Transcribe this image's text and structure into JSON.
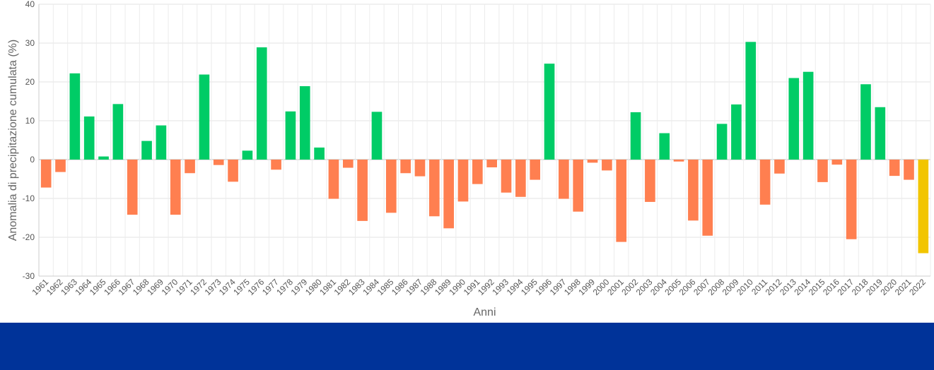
{
  "chart_data": {
    "type": "bar",
    "xlabel": "Anni",
    "ylabel": "Anomalia di precipitazione cumulata (%)",
    "ylim": [
      -30,
      40
    ],
    "yticks": [
      -30,
      -20,
      -10,
      0,
      10,
      20,
      30,
      40
    ],
    "grid": true,
    "legend": "none",
    "colors": {
      "positive": "#00cc66",
      "negative": "#ff7f50",
      "current": "#f2c500"
    },
    "highlighted_category": "2022",
    "categories": [
      "1961",
      "1962",
      "1963",
      "1964",
      "1965",
      "1966",
      "1967",
      "1968",
      "1969",
      "1970",
      "1971",
      "1972",
      "1973",
      "1974",
      "1975",
      "1976",
      "1977",
      "1978",
      "1979",
      "1980",
      "1981",
      "1982",
      "1983",
      "1984",
      "1985",
      "1986",
      "1987",
      "1988",
      "1989",
      "1990",
      "1991",
      "1992",
      "1993",
      "1994",
      "1995",
      "1996",
      "1997",
      "1998",
      "1999",
      "2000",
      "2001",
      "2002",
      "2003",
      "2004",
      "2005",
      "2006",
      "2007",
      "2008",
      "2009",
      "2010",
      "2011",
      "2012",
      "2013",
      "2014",
      "2015",
      "2016",
      "2017",
      "2018",
      "2019",
      "2020",
      "2021",
      "2022"
    ],
    "values": [
      -7.2,
      -3.2,
      22.2,
      11.1,
      0.8,
      14.3,
      -14.2,
      4.8,
      8.8,
      -14.2,
      -3.5,
      21.9,
      -1.4,
      -5.7,
      2.3,
      28.9,
      -2.6,
      12.4,
      18.9,
      3.1,
      -10.1,
      -2.1,
      -15.8,
      12.3,
      -13.7,
      -3.5,
      -4.3,
      -14.6,
      -17.7,
      -10.8,
      -6.3,
      -2.0,
      -8.5,
      -9.6,
      -5.2,
      24.7,
      -10.1,
      -13.4,
      -0.8,
      -2.8,
      -21.2,
      12.2,
      -10.9,
      6.8,
      -0.5,
      -15.7,
      -19.6,
      9.2,
      14.2,
      30.3,
      -11.6,
      -3.6,
      21.0,
      22.6,
      -5.8,
      -1.3,
      -20.5,
      19.4,
      13.5,
      -4.2,
      -5.2,
      -24.1
    ]
  },
  "footer": {
    "color": "#003399"
  }
}
